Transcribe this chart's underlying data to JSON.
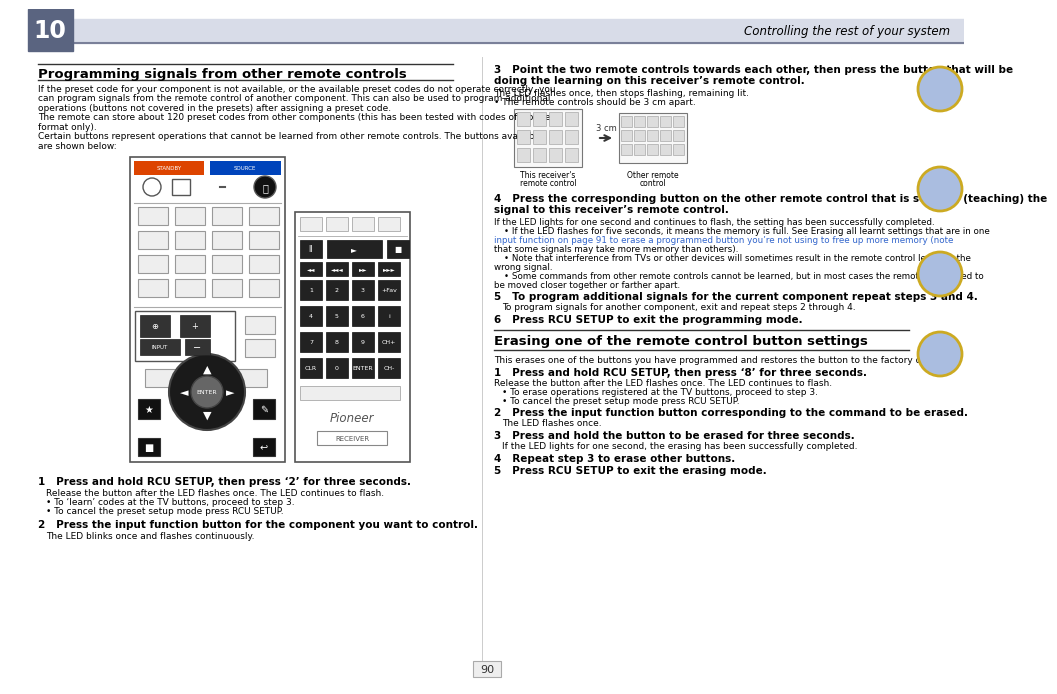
{
  "page_number": "90",
  "chapter_number": "10",
  "chapter_title": "Controlling the rest of your system",
  "chapter_box_color": "#5a6480",
  "header_bg": "#d8dce8",
  "header_line_color": "#7a8099",
  "section1_title": "Programming signals from other remote controls",
  "section1_body": [
    "If the preset code for your component is not available, or the available preset codes do not operate correctly, you",
    "can program signals from the remote control of another component. This can also be used to program additional",
    "operations (buttons not covered in the presets) after assigning a preset code.",
    "The remote can store about 120 preset codes from other components (this has been tested with codes of Pioneer",
    "format only).",
    "Certain buttons represent operations that cannot be learned from other remote controls. The buttons available",
    "are shown below:"
  ],
  "col2_step3_line1": "3   Point the two remote controls towards each other, then press the button that will be",
  "col2_step3_line2": "doing the learning on this receiver’s remote control.",
  "col2_step3_body1": "The LED flashes once, then stops flashing, remaining lit.",
  "col2_step3_body2": "• The remote controls should be 3 cm apart.",
  "col2_step4_line1": "4   Press the corresponding button on the other remote control that is sending (teaching) the",
  "col2_step4_line2": "signal to this receiver’s remote control.",
  "col2_step4_body": [
    "If the LED lights for one second and continues to flash, the setting has been successfully completed.",
    "• If the LED flashes for five seconds, it means the memory is full. See Erasing all learnt settings that are in one",
    "input function on page 91 to erase a programmed button you’re not using to free up more memory (note",
    "that some signals may take more memory than others).",
    "• Note that interference from TVs or other devices will sometimes result in the remote control learning the",
    "wrong signal.",
    "• Some commands from other remote controls cannot be learned, but in most cases the remotes just need to",
    "be moved closer together or farther apart."
  ],
  "col2_step5_title": "5   To program additional signals for the current component repeat steps 3 and 4.",
  "col2_step5_body": "To program signals for another component, exit and repeat steps 2 through 4.",
  "col2_step6_title": "6   Press RCU SETUP to exit the programming mode.",
  "section2_title": "Erasing one of the remote control button settings",
  "section2_body": "This erases one of the buttons you have programmed and restores the button to the factory default.",
  "section2_step1_title": "1   Press and hold RCU SETUP, then press ‘8’ for three seconds.",
  "section2_step1_body": [
    "Release the button after the LED flashes once. The LED continues to flash.",
    "• To erase operations registered at the TV buttons, proceed to step 3.",
    "• To cancel the preset setup mode press RCU SETUP."
  ],
  "section2_step2_title": "2   Press the input function button corresponding to the command to be erased.",
  "section2_step2_body": "The LED flashes once.",
  "section2_step3_title": "3   Press and hold the button to be erased for three seconds.",
  "section2_step3_body": "If the LED lights for one second, the erasing has been successfully completed.",
  "section2_step4_title": "4   Repeat step 3 to erase other buttons.",
  "section2_step5_title": "5   Press RCU SETUP to exit the erasing mode.",
  "col1_step1_title": "1   Press and hold RCU SETUP, then press ‘2’ for three seconds.",
  "col1_step1_body": [
    "Release the button after the LED flashes once. The LED continues to flash.",
    "• To ‘learn’ codes at the TV buttons, proceed to step 3.",
    "• To cancel the preset setup mode press RCU SETUP."
  ],
  "col1_step2_title": "2   Press the input function button for the component you want to control.",
  "col1_step2_body": "The LED blinks once and flashes continuously.",
  "bg_color": "#ffffff",
  "text_color": "#000000",
  "title_color": "#000000",
  "link_color": "#3366cc",
  "divider_color": "#333333"
}
